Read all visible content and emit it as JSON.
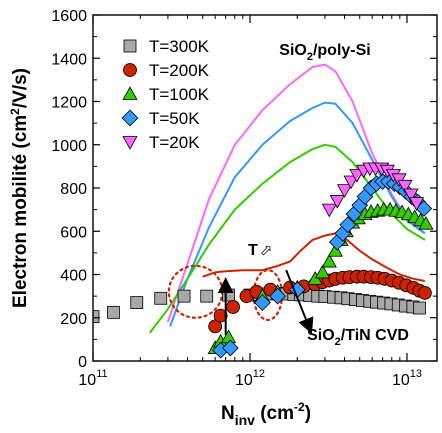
{
  "chart_data": {
    "type": "scatter",
    "title": "",
    "xlabel": {
      "main": "N",
      "sub": "inv",
      "unit_pre": " (cm",
      "unit_sup": "-2",
      "unit_post": ")"
    },
    "ylabel": {
      "pre": "Electron mobilité (cm",
      "sup": "2",
      "post": "/V/s)"
    },
    "x_scale": "log",
    "xlim": [
      100000000000.0,
      15000000000000.0
    ],
    "ylim": [
      0,
      1600
    ],
    "x_ticks": [
      {
        "value": 100000000000.0,
        "base": "10",
        "exp": "11"
      },
      {
        "value": 1000000000000.0,
        "base": "10",
        "exp": "12"
      },
      {
        "value": 10000000000000.0,
        "base": "10",
        "exp": "13"
      }
    ],
    "y_ticks": [
      0,
      200,
      400,
      600,
      800,
      1000,
      1200,
      1400,
      1600
    ],
    "legend_position": "top-left",
    "series": [
      {
        "name": "T=300K",
        "marker": "square",
        "color": "#a8a8a8",
        "points": [
          [
            100000000000.0,
            205
          ],
          [
            135000000000.0,
            225
          ],
          [
            190000000000.0,
            270
          ],
          [
            270000000000.0,
            290
          ],
          [
            380000000000.0,
            300
          ],
          [
            530000000000.0,
            300
          ],
          [
            730000000000.0,
            305
          ],
          [
            1000000000000.0,
            305
          ],
          [
            1150000000000.0,
            308
          ],
          [
            1300000000000.0,
            310
          ],
          [
            1500000000000.0,
            312
          ],
          [
            1700000000000.0,
            310
          ],
          [
            1900000000000.0,
            308
          ],
          [
            2100000000000.0,
            306
          ],
          [
            2400000000000.0,
            303
          ],
          [
            2700000000000.0,
            300
          ],
          [
            3000000000000.0,
            298
          ],
          [
            3400000000000.0,
            295
          ],
          [
            3800000000000.0,
            292
          ],
          [
            4200000000000.0,
            288
          ],
          [
            4700000000000.0,
            284
          ],
          [
            5200000000000.0,
            280
          ],
          [
            5800000000000.0,
            276
          ],
          [
            6400000000000.0,
            272
          ],
          [
            7100000000000.0,
            268
          ],
          [
            7900000000000.0,
            264
          ],
          [
            8800000000000.0,
            259
          ],
          [
            9800000000000.0,
            254
          ],
          [
            10900000000000.0,
            250
          ],
          [
            12000000000000.0,
            245
          ]
        ]
      },
      {
        "name": "T=200K",
        "marker": "circle",
        "color": "#cc2200",
        "points": [
          [
            600000000000.0,
            160
          ],
          [
            650000000000.0,
            210
          ],
          [
            780000000000.0,
            250
          ],
          [
            950000000000.0,
            300
          ],
          [
            1100000000000.0,
            320
          ],
          [
            1350000000000.0,
            330
          ],
          [
            1800000000000.0,
            340
          ],
          [
            2200000000000.0,
            345
          ],
          [
            2600000000000.0,
            355
          ],
          [
            2900000000000.0,
            365
          ],
          [
            3200000000000.0,
            372
          ],
          [
            3500000000000.0,
            380
          ],
          [
            3900000000000.0,
            385
          ],
          [
            4300000000000.0,
            388
          ],
          [
            4800000000000.0,
            390
          ],
          [
            5300000000000.0,
            390
          ],
          [
            5900000000000.0,
            388
          ],
          [
            6500000000000.0,
            385
          ],
          [
            7200000000000.0,
            380
          ],
          [
            8000000000000.0,
            372
          ],
          [
            8900000000000.0,
            362
          ],
          [
            9900000000000.0,
            350
          ],
          [
            11000000000000.0,
            338
          ],
          [
            12000000000000.0,
            325
          ],
          [
            13000000000000.0,
            315
          ]
        ]
      },
      {
        "name": "T=100K",
        "marker": "triangle-up",
        "color": "#33cc00",
        "points": [
          [
            600000000000.0,
            60
          ],
          [
            650000000000.0,
            90
          ],
          [
            730000000000.0,
            110
          ],
          [
            1200000000000.0,
            300
          ],
          [
            1500000000000.0,
            320
          ],
          [
            2000000000000.0,
            340
          ],
          [
            2600000000000.0,
            380
          ],
          [
            2900000000000.0,
            410
          ],
          [
            3200000000000.0,
            460
          ],
          [
            3500000000000.0,
            510
          ],
          [
            3800000000000.0,
            560
          ],
          [
            4100000000000.0,
            600
          ],
          [
            4500000000000.0,
            640
          ],
          [
            4900000000000.0,
            660
          ],
          [
            5400000000000.0,
            680
          ],
          [
            5900000000000.0,
            690
          ],
          [
            6500000000000.0,
            695
          ],
          [
            7100000000000.0,
            700
          ],
          [
            7800000000000.0,
            700
          ],
          [
            8500000000000.0,
            695
          ],
          [
            9300000000000.0,
            688
          ],
          [
            10200000000000.0,
            678
          ],
          [
            11200000000000.0,
            665
          ],
          [
            12200000000000.0,
            650
          ],
          [
            13200000000000.0,
            635
          ]
        ]
      },
      {
        "name": "T=50K",
        "marker": "diamond",
        "color": "#3399ff",
        "points": [
          [
            650000000000.0,
            50
          ],
          [
            750000000000.0,
            60
          ],
          [
            1200000000000.0,
            270
          ],
          [
            1500000000000.0,
            300
          ],
          [
            2000000000000.0,
            330
          ],
          [
            3600000000000.0,
            550
          ],
          [
            3900000000000.0,
            590
          ],
          [
            4200000000000.0,
            630
          ],
          [
            4600000000000.0,
            680
          ],
          [
            5000000000000.0,
            720
          ],
          [
            5400000000000.0,
            760
          ],
          [
            5900000000000.0,
            800
          ],
          [
            6400000000000.0,
            820
          ],
          [
            7000000000000.0,
            830
          ],
          [
            7600000000000.0,
            830
          ],
          [
            8300000000000.0,
            820
          ],
          [
            9000000000000.0,
            805
          ],
          [
            9800000000000.0,
            785
          ],
          [
            10700000000000.0,
            760
          ],
          [
            11700000000000.0,
            735
          ],
          [
            12800000000000.0,
            705
          ]
        ]
      },
      {
        "name": "T=20K",
        "marker": "triangle-down",
        "color": "#ff66ff",
        "points": [
          [
            3200000000000.0,
            700
          ],
          [
            3600000000000.0,
            740
          ],
          [
            4000000000000.0,
            790
          ],
          [
            4400000000000.0,
            830
          ],
          [
            4800000000000.0,
            860
          ],
          [
            5300000000000.0,
            880
          ],
          [
            5800000000000.0,
            890
          ],
          [
            6300000000000.0,
            890
          ],
          [
            6900000000000.0,
            890
          ],
          [
            7500000000000.0,
            880
          ],
          [
            8200000000000.0,
            860
          ],
          [
            8900000000000.0,
            840
          ],
          [
            9700000000000.0,
            810
          ],
          [
            10600000000000.0,
            770
          ],
          [
            11500000000000.0,
            730
          ]
        ]
      }
    ],
    "curves": [
      {
        "color": "#ff66ff",
        "points": [
          [
            300000000000.0,
            180
          ],
          [
            400000000000.0,
            450
          ],
          [
            550000000000.0,
            750
          ],
          [
            800000000000.0,
            1000
          ],
          [
            1200000000000.0,
            1160
          ],
          [
            1800000000000.0,
            1280
          ],
          [
            2500000000000.0,
            1360
          ],
          [
            3000000000000.0,
            1370
          ],
          [
            3500000000000.0,
            1340
          ],
          [
            4500000000000.0,
            1200
          ],
          [
            6000000000000.0,
            960
          ],
          [
            8000000000000.0,
            770
          ],
          [
            10000000000000.0,
            660
          ],
          [
            13000000000000.0,
            590
          ]
        ]
      },
      {
        "color": "#3399ff",
        "points": [
          [
            310000000000.0,
            160
          ],
          [
            400000000000.0,
            380
          ],
          [
            550000000000.0,
            620
          ],
          [
            800000000000.0,
            850
          ],
          [
            1200000000000.0,
            1000
          ],
          [
            1800000000000.0,
            1110
          ],
          [
            2500000000000.0,
            1170
          ],
          [
            3000000000000.0,
            1195
          ],
          [
            3500000000000.0,
            1190
          ],
          [
            4500000000000.0,
            1100
          ],
          [
            6000000000000.0,
            930
          ],
          [
            8000000000000.0,
            760
          ],
          [
            10000000000000.0,
            650
          ],
          [
            13000000000000.0,
            590
          ]
        ]
      },
      {
        "color": "#33cc00",
        "points": [
          [
            230000000000.0,
            130
          ],
          [
            300000000000.0,
            240
          ],
          [
            400000000000.0,
            380
          ],
          [
            550000000000.0,
            540
          ],
          [
            800000000000.0,
            700
          ],
          [
            1200000000000.0,
            820
          ],
          [
            1800000000000.0,
            920
          ],
          [
            2500000000000.0,
            980
          ],
          [
            3000000000000.0,
            1000
          ],
          [
            3500000000000.0,
            990
          ],
          [
            4500000000000.0,
            920
          ],
          [
            6000000000000.0,
            800
          ],
          [
            8000000000000.0,
            680
          ],
          [
            10000000000000.0,
            610
          ],
          [
            13000000000000.0,
            560
          ]
        ]
      },
      {
        "color": "#cc2200",
        "points": [
          [
            500000000000.0,
            390
          ],
          [
            600000000000.0,
            410
          ],
          [
            700000000000.0,
            415
          ],
          [
            900000000000.0,
            420
          ],
          [
            1200000000000.0,
            420
          ],
          [
            1500000000000.0,
            440
          ],
          [
            1800000000000.0,
            460
          ],
          [
            2100000000000.0,
            510
          ],
          [
            2500000000000.0,
            560
          ],
          [
            3000000000000.0,
            580
          ],
          [
            3500000000000.0,
            590
          ],
          [
            4000000000000.0,
            570
          ],
          [
            5000000000000.0,
            510
          ],
          [
            6000000000000.0,
            470
          ],
          [
            7500000000000.0,
            430
          ],
          [
            9000000000000.0,
            400
          ],
          [
            11000000000000.0,
            380
          ],
          [
            13000000000000.0,
            370
          ]
        ]
      }
    ],
    "ellipses": [
      {
        "cx": 450000000000.0,
        "cy": 320,
        "rx_decades": 0.17,
        "ry_units": 120
      },
      {
        "cx": 1300000000000.0,
        "cy": 305,
        "rx_decades": 0.09,
        "ry_units": 115
      }
    ],
    "arrows": [
      {
        "from": [
          700000000000.0,
          120
        ],
        "to": [
          700000000000.0,
          360
        ]
      },
      {
        "from": [
          1700000000000.0,
          420
        ],
        "to": [
          2400000000000.0,
          150
        ]
      }
    ],
    "annotations": {
      "top_right": {
        "pre": "SiO",
        "sub": "2",
        "post": "/poly-Si",
        "at": [
          10000000000000.0,
          1435
        ]
      },
      "bottom_right": {
        "pre": "SiO",
        "sub": "2",
        "post": "/TiN CVD",
        "at": [
          10000000000000.0,
          125
        ]
      },
      "temp_arrow": {
        "text": "T",
        "symbol": "⬀",
        "at": [
          1200000000000.0,
          470
        ]
      }
    }
  }
}
